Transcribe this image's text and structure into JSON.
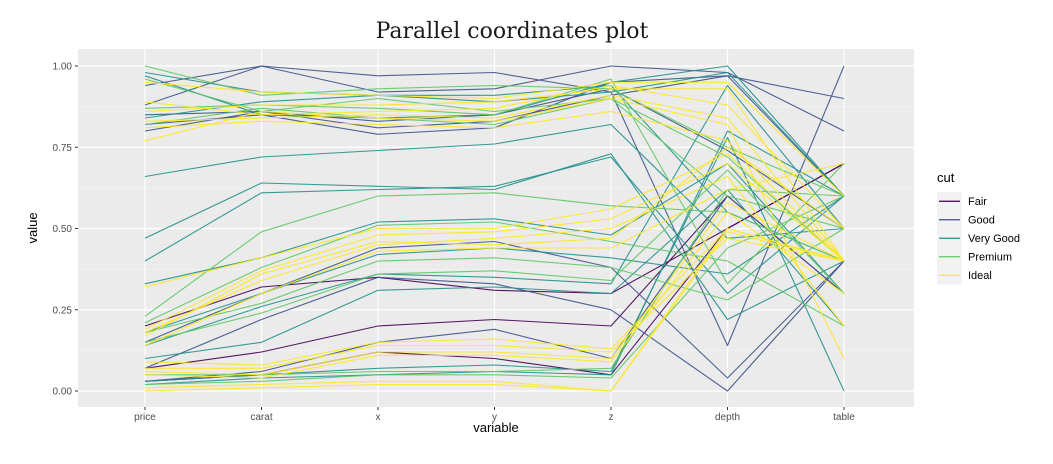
{
  "chart_data": {
    "type": "line",
    "title": "Parallel coordinates plot",
    "xlabel": "variable",
    "ylabel": "value",
    "categories": [
      "price",
      "carat",
      "x",
      "y",
      "z",
      "depth",
      "table"
    ],
    "ylim": [
      0,
      1
    ],
    "yticks": [
      "0.00",
      "0.25",
      "0.50",
      "0.75",
      "1.00"
    ],
    "grid": true,
    "legend": {
      "title": "cut",
      "position": "right",
      "entries": [
        "Fair",
        "Good",
        "Very Good",
        "Premium",
        "Ideal"
      ]
    },
    "colors": {
      "Fair": "#440154",
      "Good": "#3b528b",
      "Very Good": "#21908c",
      "Premium": "#5dc863",
      "Ideal": "#fde725",
      "panel": "#ebebeb",
      "grid": "#ffffff"
    },
    "series": [
      {
        "cut": "Fair",
        "values": [
          0.07,
          0.12,
          0.2,
          0.22,
          0.2,
          0.6,
          0.3
        ]
      },
      {
        "cut": "Fair",
        "values": [
          0.03,
          0.05,
          0.12,
          0.1,
          0.05,
          0.5,
          0.7
        ]
      },
      {
        "cut": "Fair",
        "values": [
          0.2,
          0.32,
          0.35,
          0.31,
          0.3,
          0.5,
          0.7
        ]
      },
      {
        "cut": "Good",
        "values": [
          0.88,
          1.0,
          0.97,
          0.98,
          0.92,
          0.14,
          1.0
        ]
      },
      {
        "cut": "Good",
        "values": [
          0.82,
          0.85,
          0.79,
          0.81,
          0.95,
          0.97,
          0.9
        ]
      },
      {
        "cut": "Good",
        "values": [
          0.94,
          1.0,
          0.92,
          0.93,
          1.0,
          0.98,
          0.8
        ]
      },
      {
        "cut": "Good",
        "values": [
          0.15,
          0.3,
          0.44,
          0.46,
          0.38,
          0.04,
          0.4
        ]
      },
      {
        "cut": "Good",
        "values": [
          0.03,
          0.06,
          0.15,
          0.19,
          0.1,
          0.6,
          0.3
        ]
      },
      {
        "cut": "Good",
        "values": [
          0.07,
          0.22,
          0.35,
          0.33,
          0.25,
          0.0,
          0.4
        ]
      },
      {
        "cut": "Good",
        "values": [
          0.8,
          0.86,
          0.81,
          0.83,
          0.91,
          0.97,
          0.6
        ]
      },
      {
        "cut": "Good",
        "values": [
          0.85,
          0.86,
          0.83,
          0.85,
          0.93,
          0.74,
          0.5
        ]
      },
      {
        "cut": "Very Good",
        "values": [
          0.98,
          0.92,
          0.91,
          0.89,
          0.92,
          0.98,
          0.6
        ]
      },
      {
        "cut": "Very Good",
        "values": [
          0.97,
          0.85,
          0.84,
          0.85,
          0.95,
          1.0,
          0.6
        ]
      },
      {
        "cut": "Very Good",
        "values": [
          0.66,
          0.72,
          0.74,
          0.76,
          0.82,
          0.47,
          0.5
        ]
      },
      {
        "cut": "Very Good",
        "values": [
          0.47,
          0.64,
          0.63,
          0.62,
          0.73,
          0.22,
          0.4
        ]
      },
      {
        "cut": "Very Good",
        "values": [
          0.4,
          0.61,
          0.62,
          0.63,
          0.72,
          0.3,
          0.6
        ]
      },
      {
        "cut": "Very Good",
        "values": [
          0.33,
          0.41,
          0.52,
          0.53,
          0.48,
          0.7,
          0.3
        ]
      },
      {
        "cut": "Very Good",
        "values": [
          0.18,
          0.3,
          0.42,
          0.44,
          0.41,
          0.36,
          0.6
        ]
      },
      {
        "cut": "Very Good",
        "values": [
          0.14,
          0.26,
          0.36,
          0.35,
          0.33,
          0.94,
          0.5
        ]
      },
      {
        "cut": "Very Good",
        "values": [
          0.1,
          0.15,
          0.31,
          0.32,
          0.3,
          0.62,
          0.2
        ]
      },
      {
        "cut": "Very Good",
        "values": [
          0.03,
          0.05,
          0.07,
          0.08,
          0.06,
          0.78,
          0.0
        ]
      },
      {
        "cut": "Very Good",
        "values": [
          0.02,
          0.04,
          0.05,
          0.06,
          0.05,
          0.8,
          0.6
        ]
      },
      {
        "cut": "Very Good",
        "values": [
          0.84,
          0.89,
          0.91,
          0.91,
          0.94,
          0.55,
          0.4
        ]
      },
      {
        "cut": "Premium",
        "values": [
          1.0,
          0.91,
          0.93,
          0.94,
          0.93,
          0.75,
          0.6
        ]
      },
      {
        "cut": "Premium",
        "values": [
          0.96,
          0.86,
          0.9,
          0.86,
          0.9,
          0.6,
          0.5
        ]
      },
      {
        "cut": "Premium",
        "values": [
          0.23,
          0.49,
          0.6,
          0.61,
          0.57,
          0.55,
          0.4
        ]
      },
      {
        "cut": "Premium",
        "values": [
          0.21,
          0.38,
          0.51,
          0.52,
          0.46,
          0.4,
          0.2
        ]
      },
      {
        "cut": "Premium",
        "values": [
          0.18,
          0.27,
          0.4,
          0.41,
          0.38,
          0.28,
          0.5
        ]
      },
      {
        "cut": "Premium",
        "values": [
          0.05,
          0.05,
          0.06,
          0.06,
          0.07,
          0.62,
          0.6
        ]
      },
      {
        "cut": "Premium",
        "values": [
          0.02,
          0.03,
          0.05,
          0.05,
          0.04,
          0.44,
          0.6
        ]
      },
      {
        "cut": "Premium",
        "values": [
          0.82,
          0.87,
          0.84,
          0.82,
          0.9,
          0.72,
          0.4
        ]
      },
      {
        "cut": "Premium",
        "values": [
          0.87,
          0.88,
          0.87,
          0.85,
          0.96,
          0.33,
          0.7
        ]
      },
      {
        "cut": "Premium",
        "values": [
          0.15,
          0.24,
          0.36,
          0.37,
          0.34,
          0.68,
          0.3
        ]
      },
      {
        "cut": "Ideal",
        "values": [
          0.95,
          0.92,
          0.91,
          0.9,
          0.95,
          0.95,
          0.6
        ]
      },
      {
        "cut": "Ideal",
        "values": [
          0.86,
          0.88,
          0.88,
          0.89,
          0.93,
          0.93,
          0.4
        ]
      },
      {
        "cut": "Ideal",
        "values": [
          0.77,
          0.86,
          0.84,
          0.83,
          0.9,
          0.82,
          0.1
        ]
      },
      {
        "cut": "Ideal",
        "values": [
          0.81,
          0.83,
          0.82,
          0.81,
          0.86,
          0.77,
          0.4
        ]
      },
      {
        "cut": "Ideal",
        "values": [
          0.83,
          0.84,
          0.85,
          0.84,
          0.91,
          0.84,
          0.4
        ]
      },
      {
        "cut": "Ideal",
        "values": [
          0.89,
          0.85,
          0.86,
          0.87,
          0.94,
          0.88,
          0.5
        ]
      },
      {
        "cut": "Ideal",
        "values": [
          0.32,
          0.41,
          0.5,
          0.5,
          0.56,
          0.73,
          0.4
        ]
      },
      {
        "cut": "Ideal",
        "values": [
          0.19,
          0.37,
          0.48,
          0.49,
          0.53,
          0.7,
          0.4
        ]
      },
      {
        "cut": "Ideal",
        "values": [
          0.18,
          0.34,
          0.45,
          0.47,
          0.5,
          0.66,
          0.2
        ]
      },
      {
        "cut": "Ideal",
        "values": [
          0.17,
          0.36,
          0.46,
          0.45,
          0.47,
          0.75,
          0.5
        ]
      },
      {
        "cut": "Ideal",
        "values": [
          0.14,
          0.3,
          0.43,
          0.44,
          0.44,
          0.62,
          0.7
        ]
      },
      {
        "cut": "Ideal",
        "values": [
          0.09,
          0.08,
          0.15,
          0.16,
          0.13,
          0.5,
          0.4
        ]
      },
      {
        "cut": "Ideal",
        "values": [
          0.07,
          0.07,
          0.14,
          0.14,
          0.12,
          0.47,
          0.4
        ]
      },
      {
        "cut": "Ideal",
        "values": [
          0.06,
          0.05,
          0.12,
          0.12,
          0.1,
          0.58,
          0.4
        ]
      },
      {
        "cut": "Ideal",
        "values": [
          0.05,
          0.04,
          0.11,
          0.11,
          0.09,
          0.55,
          0.3
        ]
      },
      {
        "cut": "Ideal",
        "values": [
          0.01,
          0.02,
          0.03,
          0.03,
          0.0,
          0.49,
          0.4
        ]
      },
      {
        "cut": "Ideal",
        "values": [
          0.0,
          0.01,
          0.02,
          0.02,
          0.0,
          0.5,
          0.4
        ]
      }
    ]
  }
}
